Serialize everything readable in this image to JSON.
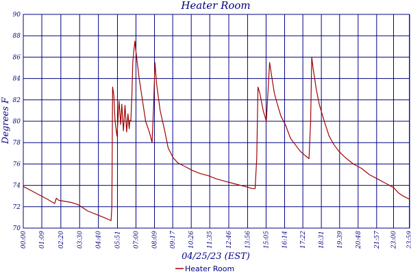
{
  "chart_data": {
    "type": "line",
    "title": "Heater Room",
    "xlabel": "04/25/23 (EST)",
    "ylabel": "Degrees F",
    "ylim": [
      70,
      90
    ],
    "xlim": [
      0,
      24
    ],
    "yticks": [
      "70",
      "72",
      "74",
      "76",
      "78",
      "80",
      "82",
      "84",
      "86",
      "88",
      "90"
    ],
    "xticks": [
      {
        "t": 0.0,
        "label": "00:00"
      },
      {
        "t": 1.15,
        "label": "01:09"
      },
      {
        "t": 2.3333,
        "label": "02:20"
      },
      {
        "t": 3.5,
        "label": "03:30"
      },
      {
        "t": 4.6667,
        "label": "04:40"
      },
      {
        "t": 5.85,
        "label": "05:51"
      },
      {
        "t": 7.0,
        "label": "07:00"
      },
      {
        "t": 8.15,
        "label": "08:09"
      },
      {
        "t": 9.2833,
        "label": "09:17"
      },
      {
        "t": 10.4333,
        "label": "10:26"
      },
      {
        "t": 11.5833,
        "label": "11:35"
      },
      {
        "t": 12.7667,
        "label": "12:46"
      },
      {
        "t": 13.9333,
        "label": "13:56"
      },
      {
        "t": 15.0833,
        "label": "15:05"
      },
      {
        "t": 16.2333,
        "label": "16:14"
      },
      {
        "t": 17.3667,
        "label": "17:22"
      },
      {
        "t": 18.5167,
        "label": "18:31"
      },
      {
        "t": 19.65,
        "label": "19:39"
      },
      {
        "t": 20.8,
        "label": "20:48"
      },
      {
        "t": 21.95,
        "label": "21:57"
      },
      {
        "t": 23.0,
        "label": "23:00"
      },
      {
        "t": 23.9833,
        "label": "23:59"
      }
    ],
    "grid": true,
    "legend_position": "bottom-center",
    "series": [
      {
        "name": "Heater Room",
        "color": "#a00000",
        "points": [
          [
            0.0,
            73.9
          ],
          [
            0.5,
            73.5
          ],
          [
            1.0,
            73.1
          ],
          [
            1.5,
            72.7
          ],
          [
            1.95,
            72.3
          ],
          [
            2.05,
            72.8
          ],
          [
            2.2,
            72.6
          ],
          [
            2.6,
            72.5
          ],
          [
            3.0,
            72.4
          ],
          [
            3.4,
            72.2
          ],
          [
            3.6,
            72.0
          ],
          [
            4.0,
            71.6
          ],
          [
            4.5,
            71.3
          ],
          [
            5.0,
            71.0
          ],
          [
            5.3,
            70.8
          ],
          [
            5.45,
            70.7
          ],
          [
            5.5,
            72.0
          ],
          [
            5.55,
            83.2
          ],
          [
            5.62,
            82.5
          ],
          [
            5.7,
            80.0
          ],
          [
            5.82,
            78.6
          ],
          [
            5.95,
            81.9
          ],
          [
            6.05,
            79.7
          ],
          [
            6.12,
            81.6
          ],
          [
            6.22,
            79.1
          ],
          [
            6.32,
            81.5
          ],
          [
            6.42,
            79.0
          ],
          [
            6.5,
            80.7
          ],
          [
            6.58,
            79.3
          ],
          [
            6.62,
            80.1
          ],
          [
            6.68,
            80.0
          ],
          [
            6.75,
            82.5
          ],
          [
            6.8,
            85.5
          ],
          [
            6.87,
            86.6
          ],
          [
            6.93,
            87.5
          ],
          [
            7.0,
            86.5
          ],
          [
            7.2,
            84.0
          ],
          [
            7.4,
            82.0
          ],
          [
            7.6,
            80.0
          ],
          [
            7.85,
            78.9
          ],
          [
            8.0,
            78.0
          ],
          [
            8.1,
            81.5
          ],
          [
            8.18,
            85.5
          ],
          [
            8.28,
            83.5
          ],
          [
            8.5,
            81.0
          ],
          [
            8.8,
            79.0
          ],
          [
            9.0,
            77.5
          ],
          [
            9.3,
            76.6
          ],
          [
            9.6,
            76.1
          ],
          [
            10.0,
            75.8
          ],
          [
            10.5,
            75.4
          ],
          [
            11.0,
            75.1
          ],
          [
            11.5,
            74.9
          ],
          [
            12.0,
            74.6
          ],
          [
            12.5,
            74.4
          ],
          [
            13.0,
            74.2
          ],
          [
            13.5,
            74.0
          ],
          [
            14.0,
            73.8
          ],
          [
            14.2,
            73.7
          ],
          [
            14.4,
            73.7
          ],
          [
            14.5,
            76.5
          ],
          [
            14.58,
            83.2
          ],
          [
            14.7,
            82.6
          ],
          [
            14.9,
            81.0
          ],
          [
            15.1,
            80.0
          ],
          [
            15.3,
            85.5
          ],
          [
            15.45,
            84.0
          ],
          [
            15.6,
            82.6
          ],
          [
            15.8,
            81.5
          ],
          [
            16.0,
            80.5
          ],
          [
            16.3,
            79.6
          ],
          [
            16.6,
            78.4
          ],
          [
            16.9,
            77.8
          ],
          [
            17.2,
            77.2
          ],
          [
            17.5,
            76.8
          ],
          [
            17.75,
            76.5
          ],
          [
            17.85,
            80.0
          ],
          [
            17.92,
            86.0
          ],
          [
            18.0,
            85.0
          ],
          [
            18.2,
            83.0
          ],
          [
            18.4,
            81.5
          ],
          [
            18.7,
            80.0
          ],
          [
            19.0,
            78.6
          ],
          [
            19.3,
            77.8
          ],
          [
            19.6,
            77.2
          ],
          [
            20.0,
            76.6
          ],
          [
            20.5,
            76.0
          ],
          [
            21.0,
            75.6
          ],
          [
            21.5,
            75.0
          ],
          [
            22.0,
            74.6
          ],
          [
            22.5,
            74.2
          ],
          [
            23.0,
            73.8
          ],
          [
            23.3,
            73.3
          ],
          [
            23.6,
            73.0
          ],
          [
            24.0,
            72.7
          ]
        ]
      }
    ]
  }
}
